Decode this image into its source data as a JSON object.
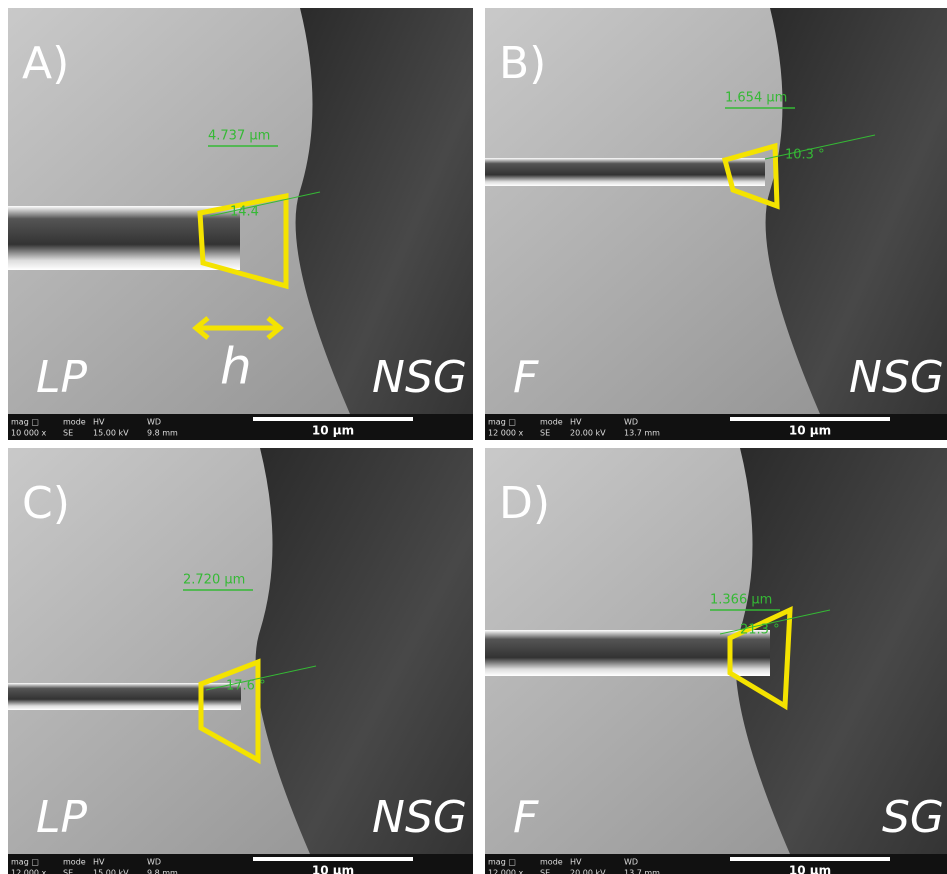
{
  "panels": [
    {
      "label": "A)",
      "measure": "4.737 µm",
      "angle": "14.4",
      "left": "LP",
      "right": "NSG",
      "extra": "h",
      "info": {
        "headers": [
          "mag □",
          "mode",
          "HV",
          "WD"
        ],
        "values": [
          "10 000 x",
          "SE",
          "15.00 kV",
          "9.8 mm"
        ]
      },
      "scale": "10 µm"
    },
    {
      "label": "B)",
      "measure": "1.654 µm",
      "angle": "10.3 °",
      "left": "F",
      "right": "NSG",
      "info": {
        "headers": [
          "mag □",
          "mode",
          "HV",
          "WD"
        ],
        "values": [
          "12 000 x",
          "SE",
          "20.00 kV",
          "13.7 mm"
        ]
      },
      "scale": "10 µm"
    },
    {
      "label": "C)",
      "measure": "2.720 µm",
      "angle": "17.6 °",
      "left": "LP",
      "right": "NSG",
      "info": {
        "headers": [
          "mag □",
          "mode",
          "HV",
          "WD"
        ],
        "values": [
          "12 000 x",
          "SE",
          "15.00 kV",
          "9.8 mm"
        ]
      },
      "scale": "10 µm"
    },
    {
      "label": "D)",
      "measure": "1.366 µm",
      "angle": "21.3 °",
      "left": "F",
      "right": "SG",
      "info": {
        "headers": [
          "mag □",
          "mode",
          "HV",
          "WD"
        ],
        "values": [
          "12 000 x",
          "SE",
          "20.00 kV",
          "13.7 mm"
        ]
      },
      "scale": "10 µm"
    }
  ]
}
